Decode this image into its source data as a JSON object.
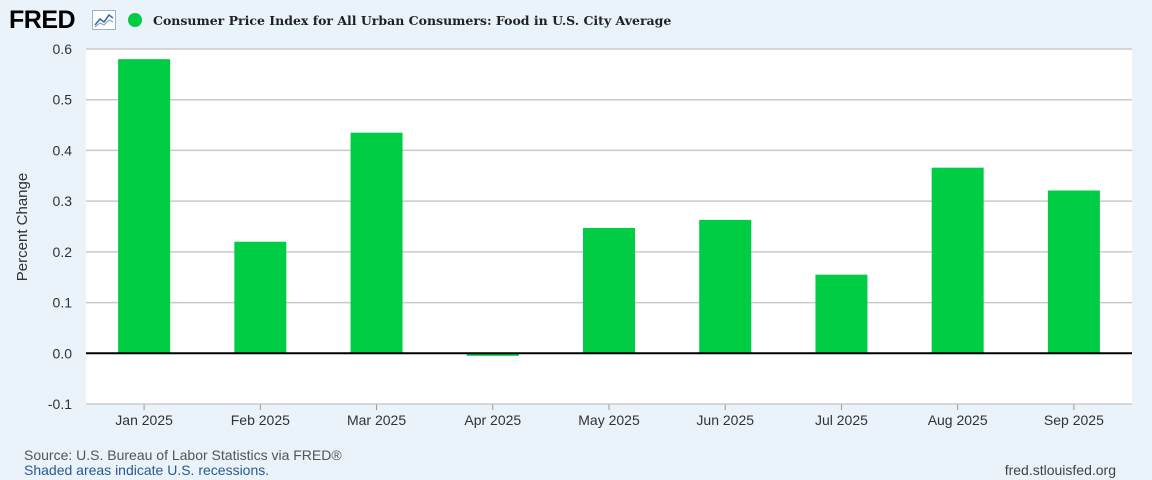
{
  "logo": {
    "text": "FRED",
    "icon": "fred-graph-icon"
  },
  "colors": {
    "bar": "#00cc44",
    "background": "#eaf2fa",
    "plot_bg": "#ffffff",
    "grid": "#c9c9c9",
    "zero_line": "#000000"
  },
  "chart_data": {
    "type": "bar",
    "title": "Consumer Price Index for All Urban Consumers: Food in U.S. City Average",
    "ylabel": "Percent Change",
    "xlabel": "",
    "ylim": [
      -0.1,
      0.6
    ],
    "yticks": [
      "0.6",
      "0.5",
      "0.4",
      "0.3",
      "0.2",
      "0.1",
      "0.0",
      "-0.1"
    ],
    "ytick_values": [
      0.6,
      0.5,
      0.4,
      0.3,
      0.2,
      0.1,
      0.0,
      -0.1
    ],
    "grid": true,
    "legend": "top-left",
    "categories": [
      "Jan 2025",
      "Feb 2025",
      "Mar 2025",
      "Apr 2025",
      "May 2025",
      "Jun 2025",
      "Jul 2025",
      "Aug 2025",
      "Sep 2025"
    ],
    "series": [
      {
        "name": "Consumer Price Index for All Urban Consumers: Food in U.S. City Average",
        "values": [
          0.58,
          0.22,
          0.435,
          -0.005,
          0.247,
          0.263,
          0.155,
          0.366,
          0.321
        ]
      }
    ]
  },
  "footer": {
    "source": "Source: U.S. Bureau of Labor Statistics via FRED®",
    "recessions": "Shaded areas indicate U.S. recessions.",
    "site": "fred.stlouisfed.org"
  }
}
